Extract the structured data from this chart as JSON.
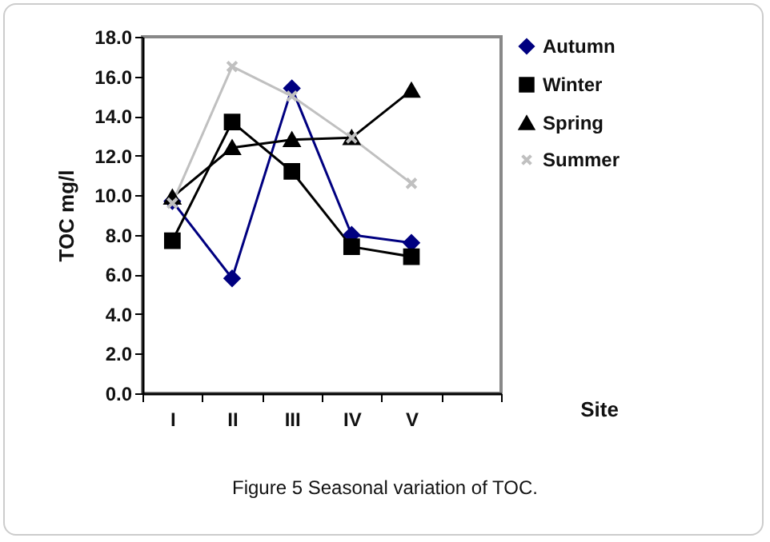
{
  "chart_data": {
    "type": "line",
    "xlabel": "Site",
    "ylabel": "TOC mg/l",
    "categories": [
      "I",
      "II",
      "III",
      "IV",
      "V",
      null
    ],
    "series": [
      {
        "name": "Autumn",
        "color": "#000080",
        "marker": "diamond",
        "values": [
          9.7,
          5.8,
          15.4,
          8.0,
          7.6,
          null
        ]
      },
      {
        "name": "Winter",
        "color": "#000000",
        "marker": "square",
        "values": [
          7.7,
          13.7,
          11.2,
          7.4,
          6.9,
          null
        ]
      },
      {
        "name": "Spring",
        "color": "#000000",
        "marker": "triangle",
        "values": [
          9.9,
          12.4,
          12.8,
          12.9,
          15.3,
          null
        ]
      },
      {
        "name": "Summer",
        "color": "#c0c0c0",
        "marker": "cross",
        "values": [
          9.6,
          16.5,
          15.0,
          12.9,
          10.6,
          null
        ]
      }
    ],
    "ylim": [
      0,
      18
    ],
    "yticks": [
      {
        "value": 0,
        "label": "0.0"
      },
      {
        "value": 2,
        "label": "2.0"
      },
      {
        "value": 4,
        "label": "4.0"
      },
      {
        "value": 6,
        "label": "6.0"
      },
      {
        "value": 8,
        "label": "8.0"
      },
      {
        "value": 10,
        "label": "10.0"
      },
      {
        "value": 12,
        "label": "12.0"
      },
      {
        "value": 14,
        "label": "14.0"
      },
      {
        "value": 16,
        "label": "16.0"
      },
      {
        "value": 18,
        "label": "18.0"
      }
    ],
    "grid": false,
    "legend": "right",
    "annotations": [
      "Figure 5 Seasonal variation of TOC."
    ]
  }
}
